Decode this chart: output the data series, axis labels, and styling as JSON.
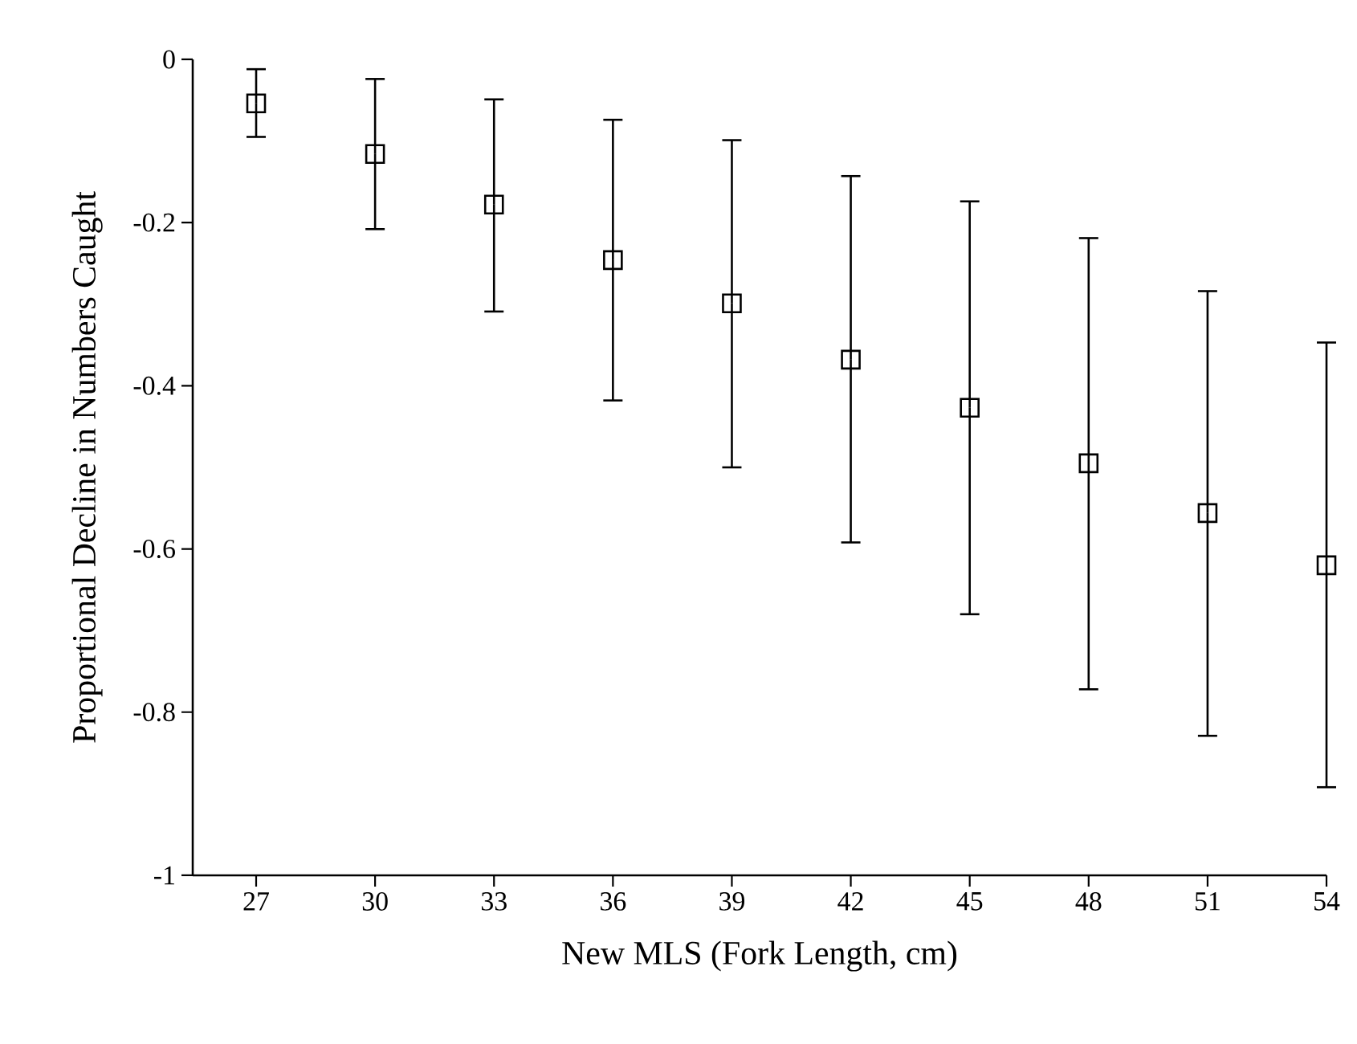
{
  "chart_data": {
    "type": "scatter",
    "xlabel": "New MLS (Fork Length, cm)",
    "ylabel": "Proportional Decline in Numbers Caught",
    "x": [
      27,
      30,
      33,
      36,
      39,
      42,
      45,
      48,
      51,
      54
    ],
    "values": [
      -0.054,
      -0.116,
      -0.178,
      -0.246,
      -0.299,
      -0.368,
      -0.427,
      -0.495,
      -0.556,
      -0.62
    ],
    "errors": [
      [
        -0.095,
        -0.012
      ],
      [
        -0.208,
        -0.024
      ],
      [
        -0.309,
        -0.049
      ],
      [
        -0.418,
        -0.074
      ],
      [
        -0.5,
        -0.099
      ],
      [
        -0.592,
        -0.143
      ],
      [
        -0.68,
        -0.174
      ],
      [
        -0.772,
        -0.219
      ],
      [
        -0.829,
        -0.284
      ],
      [
        -0.892,
        -0.347
      ]
    ],
    "color": "#000000",
    "marker": "square",
    "grid": false,
    "xlim": [
      25.4,
      54
    ],
    "xticks": [
      27,
      30,
      33,
      36,
      39,
      42,
      45,
      48,
      51,
      54
    ],
    "ylim": [
      -1,
      0
    ],
    "yticks": [
      -1,
      -0.8,
      -0.6,
      -0.4,
      -0.2,
      0
    ]
  }
}
